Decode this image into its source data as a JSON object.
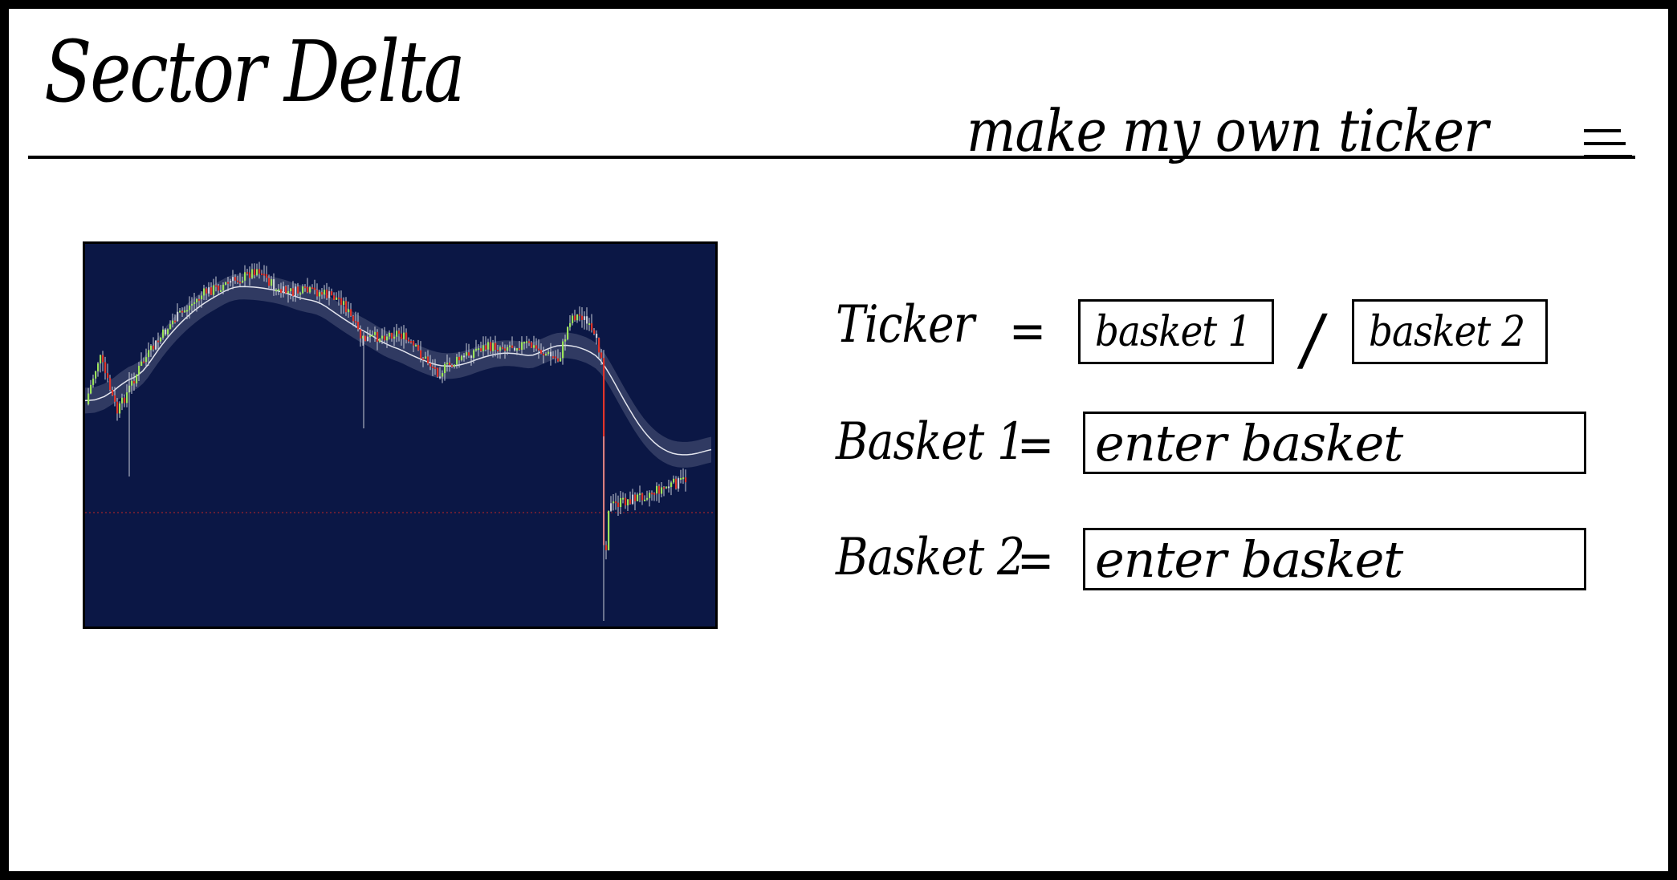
{
  "header": {
    "brand": "Sector Delta",
    "nav_link": "make my own ticker",
    "menu_icon": "hamburger-menu-icon"
  },
  "chart": {
    "background": "#0b1745",
    "colors": {
      "up": "#9be35a",
      "down": "#e0342a",
      "neutral": "#c9ccd8",
      "band": "#5d6585",
      "avg": "#e3e5ee",
      "baseline": "#c02525"
    }
  },
  "form": {
    "ticker_label": "Ticker",
    "equals": "=",
    "basket1_ref": "basket 1",
    "slash": "/",
    "basket2_ref": "basket 2",
    "basket1_label": "Basket 1",
    "basket2_label": "Basket 2",
    "basket1_placeholder": "enter basket",
    "basket2_placeholder": "enter basket"
  }
}
